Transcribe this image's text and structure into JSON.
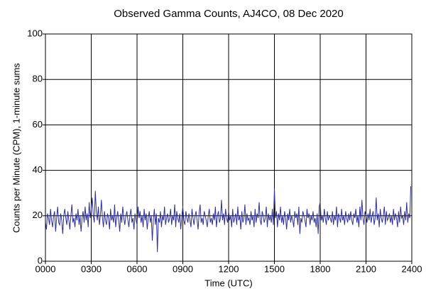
{
  "chart_data": {
    "type": "line",
    "title": "Observed Gamma Counts, AJ4CO, 08 Dec 2020",
    "xlabel": "Time (UTC)",
    "ylabel": "Counts per Minute (CPM), 1-minute sums",
    "color": "#2e2e9a",
    "grid": true,
    "xlim": [
      0,
      1440
    ],
    "ylim": [
      0,
      100
    ],
    "xticks": [
      {
        "value": 0,
        "label": "0000"
      },
      {
        "value": 180,
        "label": "0300"
      },
      {
        "value": 360,
        "label": "0600"
      },
      {
        "value": 540,
        "label": "0900"
      },
      {
        "value": 720,
        "label": "1200"
      },
      {
        "value": 900,
        "label": "1500"
      },
      {
        "value": 1080,
        "label": "1800"
      },
      {
        "value": 1260,
        "label": "2100"
      },
      {
        "value": 1440,
        "label": "2400"
      }
    ],
    "yticks": [
      0,
      20,
      40,
      60,
      80,
      100
    ],
    "x": [
      0,
      4,
      8,
      12,
      16,
      20,
      24,
      28,
      32,
      36,
      40,
      44,
      48,
      52,
      56,
      60,
      64,
      68,
      72,
      76,
      80,
      84,
      88,
      92,
      96,
      100,
      104,
      108,
      112,
      116,
      120,
      124,
      128,
      132,
      136,
      140,
      144,
      148,
      152,
      156,
      160,
      164,
      168,
      172,
      176,
      180,
      184,
      188,
      192,
      196,
      200,
      204,
      208,
      212,
      216,
      220,
      224,
      228,
      232,
      236,
      240,
      244,
      248,
      252,
      256,
      260,
      264,
      268,
      272,
      276,
      280,
      284,
      288,
      292,
      296,
      300,
      304,
      308,
      312,
      316,
      320,
      324,
      328,
      332,
      336,
      340,
      344,
      348,
      352,
      356,
      360,
      364,
      368,
      372,
      376,
      380,
      384,
      388,
      392,
      396,
      400,
      404,
      408,
      412,
      416,
      420,
      424,
      428,
      432,
      436,
      440,
      444,
      448,
      452,
      456,
      460,
      464,
      468,
      472,
      476,
      480,
      484,
      488,
      492,
      496,
      500,
      504,
      508,
      512,
      516,
      520,
      524,
      528,
      532,
      536,
      540,
      544,
      548,
      552,
      556,
      560,
      564,
      568,
      572,
      576,
      580,
      584,
      588,
      592,
      596,
      600,
      604,
      608,
      612,
      616,
      620,
      624,
      628,
      632,
      636,
      640,
      644,
      648,
      652,
      656,
      660,
      664,
      668,
      672,
      676,
      680,
      684,
      688,
      692,
      696,
      700,
      704,
      708,
      712,
      716,
      720,
      724,
      728,
      732,
      736,
      740,
      744,
      748,
      752,
      756,
      760,
      764,
      768,
      772,
      776,
      780,
      784,
      788,
      792,
      796,
      800,
      804,
      808,
      812,
      816,
      820,
      824,
      828,
      832,
      836,
      840,
      844,
      848,
      852,
      856,
      860,
      864,
      868,
      872,
      876,
      880,
      884,
      888,
      892,
      896,
      900,
      904,
      908,
      912,
      916,
      920,
      924,
      928,
      932,
      936,
      940,
      944,
      948,
      952,
      956,
      960,
      964,
      968,
      972,
      976,
      980,
      984,
      988,
      992,
      996,
      1000,
      1004,
      1008,
      1012,
      1016,
      1020,
      1024,
      1028,
      1032,
      1036,
      1040,
      1044,
      1048,
      1052,
      1056,
      1060,
      1064,
      1068,
      1072,
      1076,
      1080,
      1084,
      1088,
      1092,
      1096,
      1100,
      1104,
      1108,
      1112,
      1116,
      1120,
      1124,
      1128,
      1132,
      1136,
      1140,
      1144,
      1148,
      1152,
      1156,
      1160,
      1164,
      1168,
      1172,
      1176,
      1180,
      1184,
      1188,
      1192,
      1196,
      1200,
      1204,
      1208,
      1212,
      1216,
      1220,
      1224,
      1228,
      1232,
      1236,
      1240,
      1244,
      1248,
      1252,
      1256,
      1260,
      1264,
      1268,
      1272,
      1276,
      1280,
      1284,
      1288,
      1292,
      1296,
      1300,
      1304,
      1308,
      1312,
      1316,
      1320,
      1324,
      1328,
      1332,
      1336,
      1340,
      1344,
      1348,
      1352,
      1356,
      1360,
      1364,
      1368,
      1372,
      1376,
      1380,
      1384,
      1388,
      1392,
      1396,
      1400,
      1404,
      1408,
      1412,
      1416,
      1420,
      1424,
      1428,
      1432,
      1436
    ],
    "values": [
      17,
      14,
      21,
      19,
      16,
      23,
      18,
      15,
      20,
      22,
      13,
      19,
      24,
      17,
      16,
      21,
      18,
      12,
      20,
      23,
      19,
      16,
      22,
      18,
      14,
      20,
      25,
      17,
      19,
      15,
      21,
      18,
      23,
      16,
      20,
      13,
      19,
      22,
      17,
      24,
      18,
      21,
      15,
      26,
      19,
      23,
      28,
      20,
      17,
      31,
      22,
      18,
      24,
      16,
      20,
      27,
      19,
      15,
      22,
      18,
      16,
      21,
      19,
      14,
      23,
      18,
      20,
      17,
      25,
      15,
      19,
      22,
      18,
      13,
      21,
      17,
      24,
      19,
      16,
      20,
      22,
      18,
      15,
      20,
      23,
      17,
      19,
      14,
      21,
      18,
      16,
      24,
      19,
      22,
      17,
      20,
      15,
      23,
      18,
      21,
      14,
      19,
      22,
      17,
      20,
      9,
      18,
      23,
      16,
      21,
      4,
      19,
      17,
      22,
      15,
      20,
      18,
      24,
      16,
      19,
      21,
      17,
      19,
      23,
      16,
      20,
      18,
      25,
      15,
      22,
      19,
      17,
      21,
      14,
      20,
      24,
      18,
      16,
      22,
      19,
      17,
      21,
      18,
      15,
      23,
      19,
      16,
      20,
      22,
      18,
      14,
      21,
      25,
      17,
      19,
      16,
      22,
      20,
      18,
      15,
      20,
      23,
      17,
      19,
      16,
      21,
      18,
      24,
      15,
      20,
      22,
      17,
      19,
      27,
      18,
      21,
      16,
      23,
      19,
      17,
      22,
      18,
      20,
      15,
      23,
      17,
      19,
      21,
      16,
      24,
      18,
      20,
      14,
      22,
      17,
      19,
      25,
      16,
      21,
      18,
      19,
      16,
      22,
      18,
      20,
      15,
      23,
      17,
      21,
      19,
      26,
      18,
      16,
      22,
      20,
      17,
      19,
      24,
      15,
      21,
      18,
      20,
      17,
      23,
      16,
      32,
      19,
      22,
      15,
      21,
      18,
      24,
      17,
      20,
      16,
      22,
      19,
      14,
      21,
      18,
      23,
      17,
      20,
      18,
      15,
      22,
      19,
      21,
      16,
      24,
      12,
      19,
      17,
      22,
      20,
      18,
      15,
      23,
      19,
      21,
      16,
      20,
      18,
      22,
      17,
      19,
      15,
      21,
      12,
      24,
      26,
      18,
      20,
      17,
      23,
      19,
      16,
      22,
      18,
      20,
      19,
      17,
      22,
      16,
      20,
      18,
      24,
      15,
      21,
      19,
      17,
      23,
      18,
      20,
      16,
      22,
      19,
      17,
      21,
      18,
      22,
      18,
      16,
      21,
      19,
      23,
      17,
      20,
      15,
      24,
      18,
      27,
      19,
      16,
      22,
      20,
      17,
      21,
      18,
      23,
      17,
      20,
      22,
      16,
      19,
      28,
      18,
      21,
      15,
      23,
      19,
      17,
      20,
      24,
      16,
      22,
      18,
      19,
      21,
      17,
      20,
      16,
      23,
      18,
      21,
      19,
      15,
      22,
      17,
      24,
      19,
      20,
      16,
      22,
      18,
      26,
      17,
      21,
      19,
      33
    ]
  }
}
